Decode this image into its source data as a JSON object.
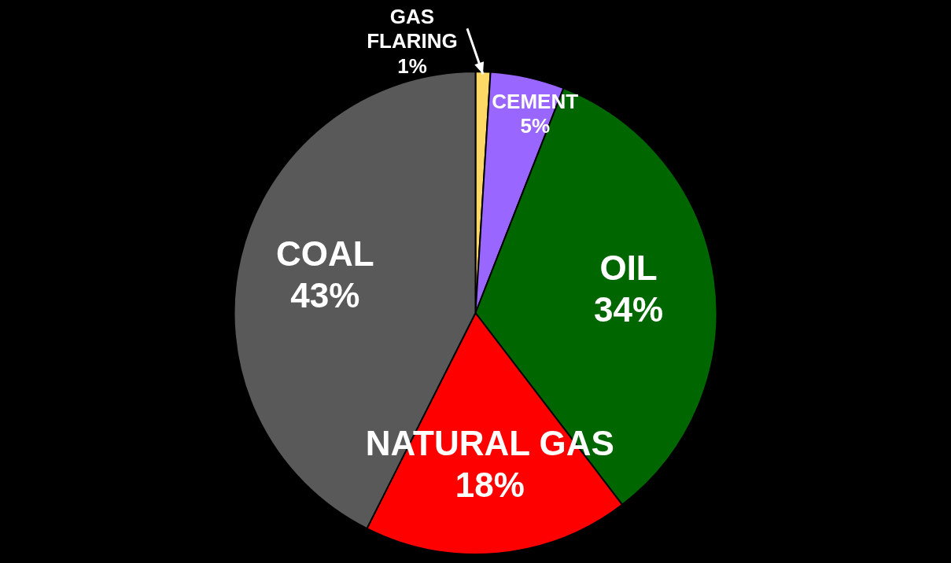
{
  "chart_data": {
    "type": "pie",
    "categories": [
      "GAS FLARING",
      "CEMENT",
      "OIL",
      "NATURAL GAS",
      "COAL"
    ],
    "values": [
      1,
      5,
      34,
      18,
      43
    ],
    "value_labels": [
      "1%",
      "5%",
      "34%",
      "18%",
      "43%"
    ],
    "colors": [
      "#ffd966",
      "#9966ff",
      "#006600",
      "#ff0000",
      "#595959"
    ],
    "legend": false
  }
}
